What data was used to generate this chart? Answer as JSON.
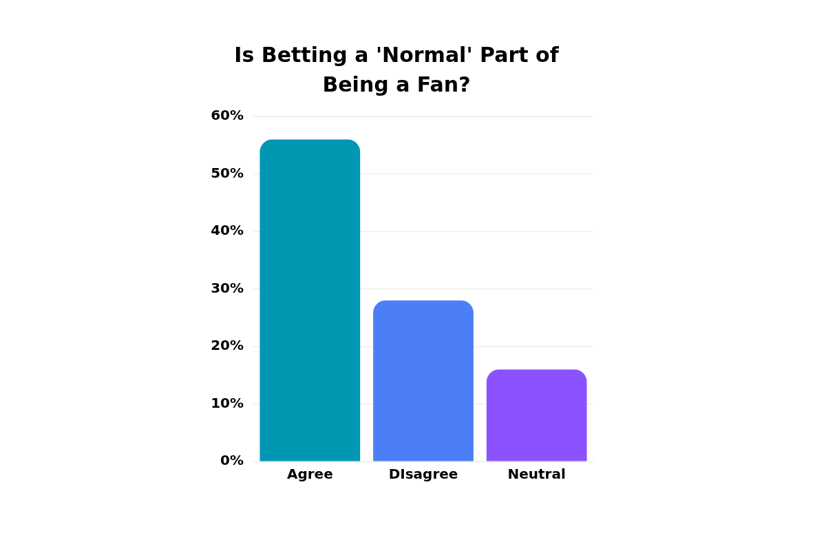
{
  "chart_data": {
    "type": "bar",
    "title": "Is Betting a 'Normal' Part of Being a Fan?",
    "categories": [
      "Agree",
      "DIsagree",
      "Neutral"
    ],
    "values": [
      56,
      28,
      16
    ],
    "colors": [
      "#0097b2",
      "#4c7ff6",
      "#8c52ff"
    ],
    "ylim": [
      0,
      60
    ],
    "yticks": [
      {
        "value": 0,
        "label": "0%"
      },
      {
        "value": 10,
        "label": "10%"
      },
      {
        "value": 20,
        "label": "20%"
      },
      {
        "value": 30,
        "label": "30%"
      },
      {
        "value": 40,
        "label": "40%"
      },
      {
        "value": 50,
        "label": "50%"
      },
      {
        "value": 60,
        "label": "60%"
      }
    ],
    "grid": "y",
    "legend": false
  }
}
